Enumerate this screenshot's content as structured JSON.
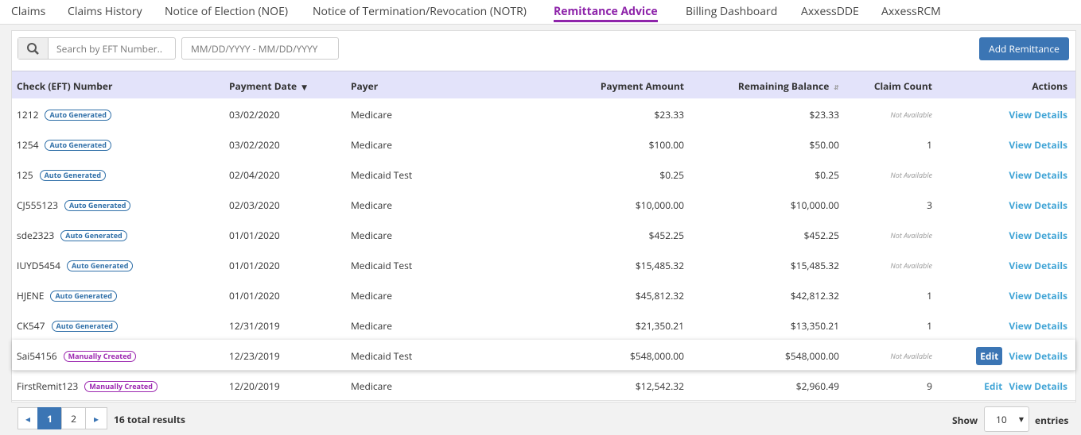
{
  "tabs": [
    "Claims",
    "Claims History",
    "Notice of Election (NOE)",
    "Notice of Termination/Revocation (NOTR)",
    "Remittance Advice",
    "Billing Dashboard",
    "AxxessDDE",
    "AxxessRCM"
  ],
  "active_tab": 4,
  "toolbar": {
    "search_placeholder": "Search by EFT Number..",
    "date_placeholder": "MM/DD/YYYY - MM/DD/YYYY",
    "add_button": "Add Remittance"
  },
  "table": {
    "columns": [
      "Check (EFT) Number",
      "Payment Date",
      "Payer",
      "Payment Amount",
      "Remaining Balance",
      "Claim Count",
      "Actions"
    ],
    "rows": [
      {
        "check": "1212",
        "badge": "Auto Generated",
        "date": "03/02/2020",
        "payer": "Medicare",
        "amount": "$23.33",
        "balance": "$23.33",
        "claims": "Not Available",
        "actions": [
          "View Details"
        ]
      },
      {
        "check": "1254",
        "badge": "Auto Generated",
        "date": "03/02/2020",
        "payer": "Medicare",
        "amount": "$100.00",
        "balance": "$50.00",
        "claims": "1",
        "actions": [
          "View Details"
        ]
      },
      {
        "check": "125",
        "badge": "Auto Generated",
        "date": "02/04/2020",
        "payer": "Medicaid Test",
        "amount": "$0.25",
        "balance": "$0.25",
        "claims": "Not Available",
        "actions": [
          "View Details"
        ]
      },
      {
        "check": "CJ555123",
        "badge": "Auto Generated",
        "date": "02/03/2020",
        "payer": "Medicare",
        "amount": "$10,000.00",
        "balance": "$10,000.00",
        "claims": "3",
        "actions": [
          "View Details"
        ]
      },
      {
        "check": "sde2323",
        "badge": "Auto Generated",
        "date": "01/01/2020",
        "payer": "Medicare",
        "amount": "$452.25",
        "balance": "$452.25",
        "claims": "Not Available",
        "actions": [
          "View Details"
        ]
      },
      {
        "check": "IUYD5454",
        "badge": "Auto Generated",
        "date": "01/01/2020",
        "payer": "Medicaid Test",
        "amount": "$15,485.32",
        "balance": "$15,485.32",
        "claims": "Not Available",
        "actions": [
          "View Details"
        ]
      },
      {
        "check": "HJENE",
        "badge": "Auto Generated",
        "date": "01/01/2020",
        "payer": "Medicare",
        "amount": "$45,812.32",
        "balance": "$42,812.32",
        "claims": "1",
        "actions": [
          "View Details"
        ]
      },
      {
        "check": "CK547",
        "badge": "Auto Generated",
        "date": "12/31/2019",
        "payer": "Medicare",
        "amount": "$21,350.21",
        "balance": "$13,350.21",
        "claims": "1",
        "actions": [
          "View Details"
        ]
      },
      {
        "check": "Sai54156",
        "badge": "Manually Created",
        "date": "12/23/2019",
        "payer": "Medicaid Test",
        "amount": "$548,000.00",
        "balance": "$548,000.00",
        "claims": "Not Available",
        "actions": [
          "Edit",
          "View Details"
        ]
      },
      {
        "check": "FirstRemit123",
        "badge": "Manually Created",
        "date": "12/20/2019",
        "payer": "Medicare",
        "amount": "$12,542.32",
        "balance": "$2,960.49",
        "claims": "9",
        "actions": [
          "Edit",
          "View Details"
        ]
      }
    ]
  },
  "pagination": {
    "pages": [
      "1",
      "2"
    ],
    "current": 0,
    "total": "16 total results",
    "show": "Show",
    "page_size": "10",
    "entries": "entries"
  }
}
